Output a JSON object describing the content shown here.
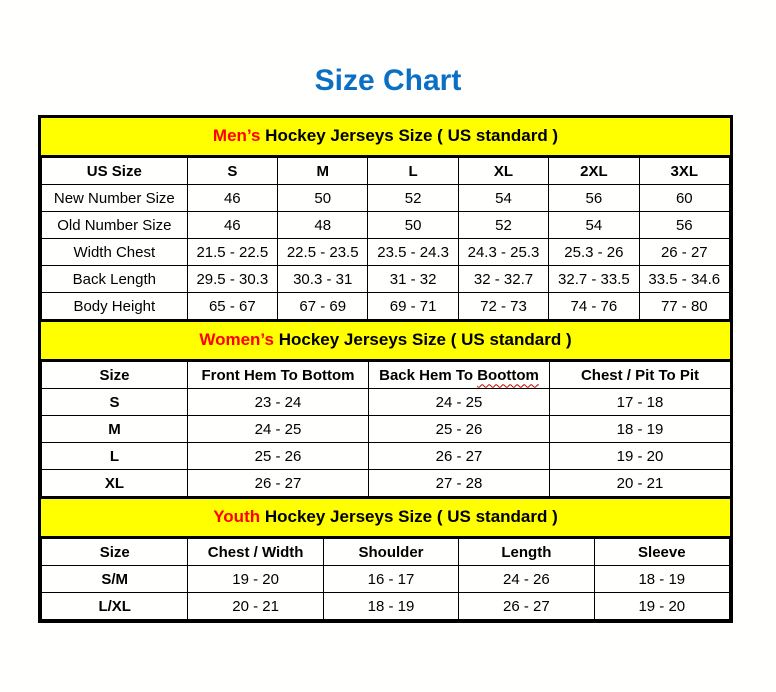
{
  "page": {
    "title": "Size Chart"
  },
  "colors": {
    "title_blue": "#0b6fc3",
    "banner_background": "#ffff00",
    "banner_accent_red": "#ff0000",
    "table_border_black": "#000000",
    "squiggle_red": "#c00000"
  },
  "sections": [
    {
      "id": "mens",
      "banner": {
        "accent": "Men’s",
        "rest": " Hockey Jerseys Size ( US standard )"
      },
      "columns": [
        "US Size",
        "S",
        "M",
        "L",
        "XL",
        "2XL",
        "3XL"
      ],
      "rows": [
        {
          "label": "New Number Size",
          "values": [
            "46",
            "50",
            "52",
            "54",
            "56",
            "60"
          ]
        },
        {
          "label": "Old Number Size",
          "values": [
            "46",
            "48",
            "50",
            "52",
            "54",
            "56"
          ]
        },
        {
          "label": "Width Chest",
          "values": [
            "21.5 - 22.5",
            "22.5 - 23.5",
            "23.5 - 24.3",
            "24.3 - 25.3",
            "25.3 - 26",
            "26 - 27"
          ]
        },
        {
          "label": "Back Length",
          "values": [
            "29.5 - 30.3",
            "30.3 - 31",
            "31 - 32",
            "32 - 32.7",
            "32.7 - 33.5",
            "33.5 - 34.6"
          ]
        },
        {
          "label": "Body Height",
          "values": [
            "65 - 67",
            "67 - 69",
            "69 - 71",
            "72 - 73",
            "74 - 76",
            "77 - 80"
          ]
        }
      ]
    },
    {
      "id": "womens",
      "banner": {
        "accent": "Women’s",
        "rest": " Hockey Jerseys Size ( US standard )"
      },
      "columns": [
        "Size",
        "Front Hem To Bottom",
        {
          "prefix": "Back Hem To ",
          "squiggle": "Boottom"
        },
        "Chest / Pit To Pit"
      ],
      "rows": [
        {
          "label": "S",
          "values": [
            "23 - 24",
            "24 - 25",
            "17 - 18"
          ]
        },
        {
          "label": "M",
          "values": [
            "24 - 25",
            "25 - 26",
            "18 - 19"
          ]
        },
        {
          "label": "L",
          "values": [
            "25 - 26",
            "26 - 27",
            "19 - 20"
          ]
        },
        {
          "label": "XL",
          "values": [
            "26 - 27",
            "27 - 28",
            "20 - 21"
          ]
        }
      ]
    },
    {
      "id": "youth",
      "banner": {
        "accent": "Youth",
        "rest": " Hockey Jerseys Size ( US standard )"
      },
      "columns": [
        "Size",
        "Chest / Width",
        "Shoulder",
        "Length",
        "Sleeve"
      ],
      "rows": [
        {
          "label": "S/M",
          "values": [
            "19 - 20",
            "16 - 17",
            "24 - 26",
            "18 - 19"
          ]
        },
        {
          "label": "L/XL",
          "values": [
            "20 - 21",
            "18 - 19",
            "26 - 27",
            "19 - 20"
          ]
        }
      ]
    }
  ]
}
